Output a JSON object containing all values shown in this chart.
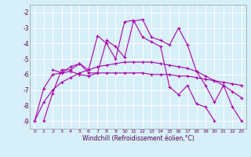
{
  "xlabel": "Windchill (Refroidissement éolien,°C)",
  "background_color": "#d6eff8",
  "line_color": "#aa00aa",
  "grid_color": "#ffffff",
  "xlim": [
    -0.5,
    23.5
  ],
  "ylim": [
    -9.5,
    -1.5
  ],
  "yticks": [
    -9,
    -8,
    -7,
    -6,
    -5,
    -4,
    -3,
    -2
  ],
  "xticks": [
    0,
    1,
    2,
    3,
    4,
    5,
    6,
    7,
    8,
    9,
    10,
    11,
    12,
    13,
    14,
    15,
    16,
    17,
    18,
    19,
    20,
    21,
    22,
    23
  ],
  "series": [
    {
      "x": [
        1,
        2,
        3,
        4,
        5,
        6,
        7,
        8,
        9,
        10,
        11,
        12,
        13,
        14,
        15,
        16,
        17,
        18,
        19,
        20,
        21,
        22,
        23
      ],
      "y": [
        -9.0,
        -7.2,
        -5.7,
        -5.7,
        -5.3,
        -5.9,
        -5.9,
        -3.8,
        -4.2,
        -4.9,
        -2.55,
        -2.45,
        -3.6,
        -3.8,
        -4.1,
        -3.0,
        -4.1,
        -5.8,
        -6.7,
        -7.8,
        -6.7,
        -8.1,
        -9.0
      ]
    },
    {
      "x": [
        2,
        3,
        4,
        5,
        6,
        7,
        8,
        9,
        10,
        11,
        12,
        13,
        14,
        15,
        16,
        17,
        18,
        19,
        20
      ],
      "y": [
        -5.7,
        -5.9,
        -5.5,
        -5.3,
        -5.7,
        -3.5,
        -4.0,
        -5.0,
        -2.6,
        -2.5,
        -3.6,
        -3.9,
        -4.2,
        -6.8,
        -7.3,
        -6.7,
        -7.9,
        -8.1,
        -9.0
      ]
    },
    {
      "x": [
        0,
        1,
        2,
        3,
        4,
        5,
        6,
        7,
        8,
        9,
        10,
        11,
        12,
        13,
        14,
        15,
        16,
        17,
        18,
        19,
        20,
        21,
        22,
        23
      ],
      "y": [
        -9.0,
        -6.9,
        -6.0,
        -5.9,
        -5.8,
        -6.0,
        -6.1,
        -5.9,
        -5.9,
        -5.9,
        -5.9,
        -5.9,
        -5.9,
        -6.0,
        -6.0,
        -6.0,
        -6.1,
        -6.1,
        -6.2,
        -6.3,
        -6.4,
        -6.5,
        -6.6,
        -6.7
      ]
    },
    {
      "x": [
        0,
        1,
        2,
        3,
        4,
        5,
        6,
        7,
        8,
        9,
        10,
        11,
        12,
        13,
        14,
        15,
        16,
        17,
        18,
        19,
        20,
        21,
        22,
        23
      ],
      "y": [
        -9.0,
        -7.8,
        -7.0,
        -6.5,
        -6.2,
        -5.9,
        -5.7,
        -5.5,
        -5.4,
        -5.3,
        -5.2,
        -5.2,
        -5.2,
        -5.2,
        -5.3,
        -5.4,
        -5.5,
        -5.6,
        -5.8,
        -6.1,
        -6.4,
        -6.7,
        -7.1,
        -7.5
      ]
    }
  ]
}
